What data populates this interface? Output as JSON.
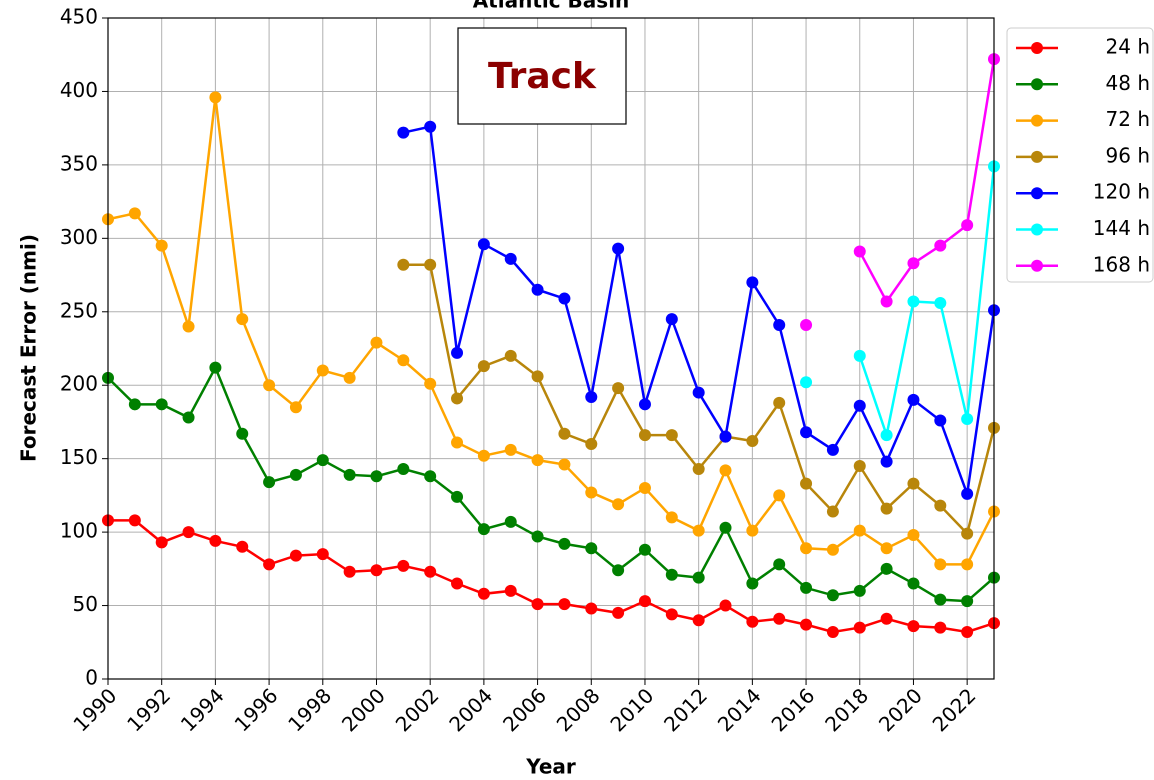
{
  "chart_data": {
    "type": "line",
    "title": "Atlantic Basin",
    "annotation": "Track",
    "xlabel": "Year",
    "ylabel": "Forecast Error (nmi)",
    "x": [
      1990,
      1991,
      1992,
      1993,
      1994,
      1995,
      1996,
      1997,
      1998,
      1999,
      2000,
      2001,
      2002,
      2003,
      2004,
      2005,
      2006,
      2007,
      2008,
      2009,
      2010,
      2011,
      2012,
      2013,
      2014,
      2015,
      2016,
      2017,
      2018,
      2019,
      2020,
      2021,
      2022,
      2023
    ],
    "xlim": [
      1990,
      2023
    ],
    "xticks": [
      1990,
      1992,
      1994,
      1996,
      1998,
      2000,
      2002,
      2004,
      2006,
      2008,
      2010,
      2012,
      2014,
      2016,
      2018,
      2020,
      2022
    ],
    "ylim": [
      0,
      450
    ],
    "yticks": [
      0,
      50,
      100,
      150,
      200,
      250,
      300,
      350,
      400,
      450
    ],
    "grid": true,
    "legend": "outside-upper-right",
    "series": [
      {
        "name": "24 h",
        "color": "#ff0000",
        "values": [
          108,
          108,
          93,
          100,
          94,
          90,
          78,
          84,
          85,
          73,
          74,
          77,
          73,
          65,
          58,
          60,
          51,
          51,
          48,
          45,
          53,
          44,
          40,
          50,
          39,
          41,
          37,
          32,
          35,
          41,
          36,
          35,
          32,
          38
        ]
      },
      {
        "name": "48 h",
        "color": "#008000",
        "values": [
          205,
          187,
          187,
          178,
          212,
          167,
          134,
          139,
          149,
          139,
          138,
          143,
          138,
          124,
          102,
          107,
          97,
          92,
          89,
          74,
          88,
          71,
          69,
          103,
          65,
          78,
          62,
          57,
          60,
          75,
          65,
          54,
          53,
          69
        ]
      },
      {
        "name": "72 h",
        "color": "#ffa500",
        "values": [
          313,
          317,
          295,
          240,
          396,
          245,
          200,
          185,
          210,
          205,
          229,
          217,
          201,
          161,
          152,
          156,
          149,
          146,
          127,
          119,
          130,
          110,
          101,
          142,
          101,
          125,
          89,
          88,
          101,
          89,
          98,
          78,
          78,
          114
        ]
      },
      {
        "name": "96 h",
        "color": "#b8860b",
        "values": [
          null,
          null,
          null,
          null,
          null,
          null,
          null,
          null,
          null,
          null,
          null,
          282,
          282,
          191,
          213,
          220,
          206,
          167,
          160,
          198,
          166,
          166,
          143,
          165,
          162,
          188,
          133,
          114,
          145,
          116,
          133,
          118,
          99,
          171
        ]
      },
      {
        "name": "120 h",
        "color": "#0000ff",
        "values": [
          null,
          null,
          null,
          null,
          null,
          null,
          null,
          null,
          null,
          null,
          null,
          372,
          376,
          222,
          296,
          286,
          265,
          259,
          192,
          293,
          187,
          245,
          195,
          165,
          270,
          241,
          168,
          156,
          186,
          148,
          190,
          176,
          126,
          251
        ]
      },
      {
        "name": "144 h",
        "color": "#00ffff",
        "values": [
          null,
          null,
          null,
          null,
          null,
          null,
          null,
          null,
          null,
          null,
          null,
          null,
          null,
          null,
          null,
          null,
          null,
          null,
          null,
          null,
          null,
          null,
          null,
          null,
          null,
          null,
          202,
          null,
          220,
          166,
          257,
          256,
          177,
          349
        ]
      },
      {
        "name": "168 h",
        "color": "#ff00ff",
        "values": [
          null,
          null,
          null,
          null,
          null,
          null,
          null,
          null,
          null,
          null,
          null,
          null,
          null,
          null,
          null,
          null,
          null,
          null,
          null,
          null,
          null,
          null,
          null,
          null,
          null,
          null,
          241,
          null,
          291,
          257,
          283,
          295,
          309,
          422
        ]
      }
    ]
  }
}
